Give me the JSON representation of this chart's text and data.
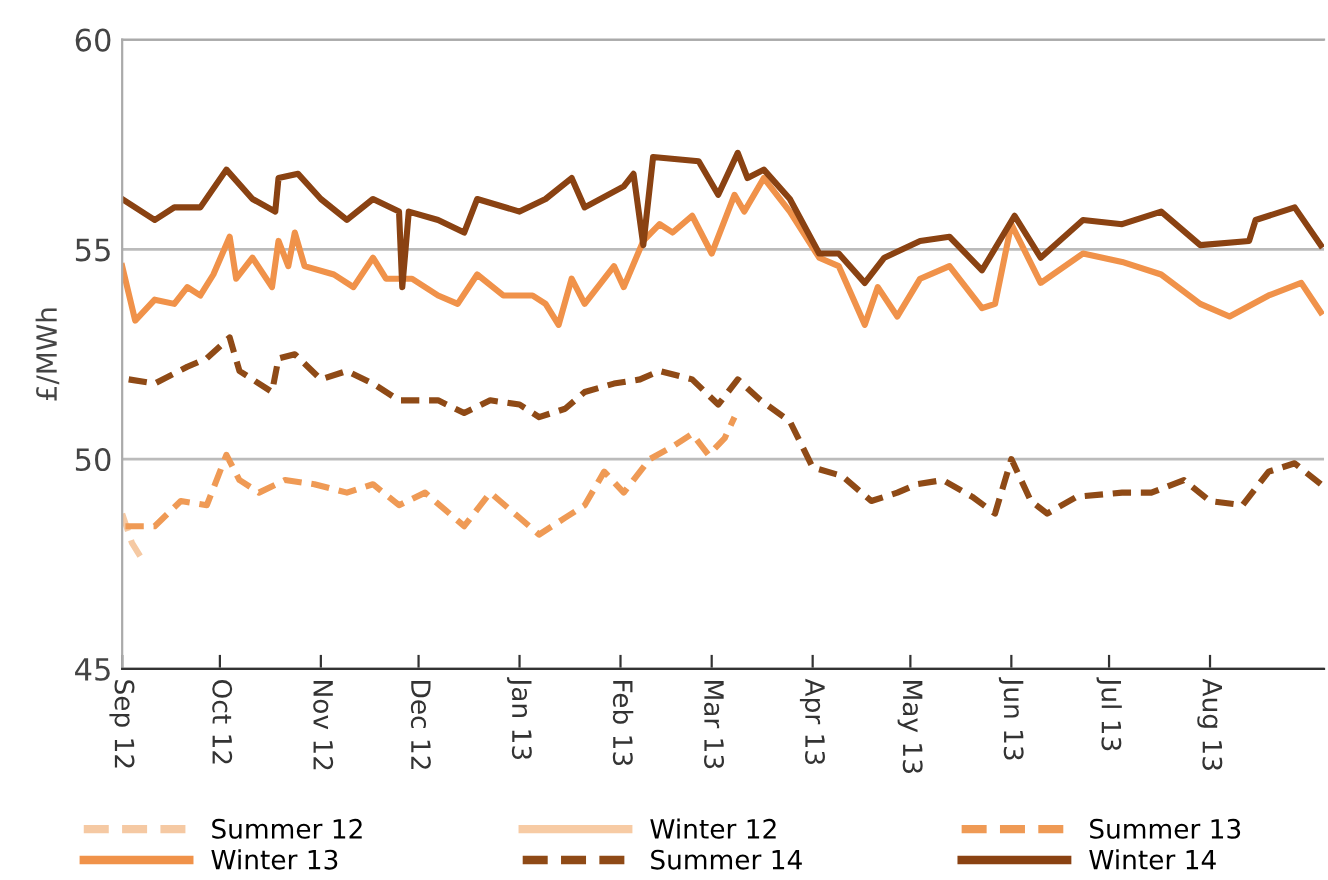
{
  "chart_data": {
    "type": "line",
    "ylabel": "£/MWh",
    "xlim": [
      "2012-09-01",
      "2013-09-05"
    ],
    "ylim": [
      45,
      60
    ],
    "yticks": [
      45,
      50,
      55,
      60
    ],
    "xticks": [
      {
        "value": "2012-09-01",
        "label": "Sep 12"
      },
      {
        "value": "2012-10-01",
        "label": "Oct 12"
      },
      {
        "value": "2012-11-01",
        "label": "Nov 12"
      },
      {
        "value": "2012-12-01",
        "label": "Dec 12"
      },
      {
        "value": "2013-01-01",
        "label": "Jan 13"
      },
      {
        "value": "2013-02-01",
        "label": "Feb 13"
      },
      {
        "value": "2013-03-01",
        "label": "Mar 13"
      },
      {
        "value": "2013-04-01",
        "label": "Apr 13"
      },
      {
        "value": "2013-05-01",
        "label": "May 13"
      },
      {
        "value": "2013-06-01",
        "label": "Jun 13"
      },
      {
        "value": "2013-07-01",
        "label": "Jul 13"
      },
      {
        "value": "2013-08-01",
        "label": "Aug 13"
      }
    ],
    "grid": "y",
    "legend": "bottom",
    "marker": "none",
    "series": [
      {
        "name": "Summer 12",
        "color": "#f5c9a3",
        "line_style": "dashed",
        "x": [
          "2012-09-01",
          "2012-09-04",
          "2012-09-08"
        ],
        "values": [
          48.7,
          48.0,
          47.5
        ]
      },
      {
        "name": "Winter 12",
        "color": "#f7cba4",
        "line_style": "solid"
      },
      {
        "name": "Summer 13",
        "color": "#ef9a55",
        "line_style": "dashed",
        "x": [
          "2012-09-02",
          "2012-09-11",
          "2012-09-19",
          "2012-09-27",
          "2012-10-03",
          "2012-10-07",
          "2012-10-13",
          "2012-10-21",
          "2012-10-30",
          "2012-11-09",
          "2012-11-17",
          "2012-11-25",
          "2012-12-03",
          "2012-12-15",
          "2012-12-23",
          "2013-01-01",
          "2013-01-07",
          "2013-01-15",
          "2013-01-21",
          "2013-01-27",
          "2013-02-02",
          "2013-02-10",
          "2013-02-17",
          "2013-02-23",
          "2013-02-28",
          "2013-03-05",
          "2013-03-08"
        ],
        "values": [
          48.4,
          48.4,
          49.0,
          48.9,
          50.1,
          49.5,
          49.2,
          49.5,
          49.4,
          49.2,
          49.4,
          48.9,
          49.2,
          48.4,
          49.2,
          48.6,
          48.2,
          48.6,
          48.9,
          49.7,
          49.2,
          50.0,
          50.3,
          50.6,
          50.1,
          50.5,
          51.0
        ]
      },
      {
        "name": "Winter 13",
        "color": "#f0924a",
        "line_style": "solid",
        "x": [
          "2012-09-01",
          "2012-09-05",
          "2012-09-11",
          "2012-09-17",
          "2012-09-21",
          "2012-09-25",
          "2012-09-29",
          "2012-10-04",
          "2012-10-06",
          "2012-10-11",
          "2012-10-17",
          "2012-10-19",
          "2012-10-22",
          "2012-10-24",
          "2012-10-27",
          "2012-11-05",
          "2012-11-11",
          "2012-11-17",
          "2012-11-21",
          "2012-11-29",
          "2012-12-07",
          "2012-12-13",
          "2012-12-19",
          "2012-12-27",
          "2013-01-05",
          "2013-01-09",
          "2013-01-13",
          "2013-01-17",
          "2013-01-21",
          "2013-01-30",
          "2013-02-02",
          "2013-02-08",
          "2013-02-13",
          "2013-02-17",
          "2013-02-23",
          "2013-03-01",
          "2013-03-08",
          "2013-03-11",
          "2013-03-17",
          "2013-03-25",
          "2013-04-03",
          "2013-04-09",
          "2013-04-17",
          "2013-04-21",
          "2013-04-27",
          "2013-05-04",
          "2013-05-13",
          "2013-05-23",
          "2013-05-27",
          "2013-06-01",
          "2013-06-10",
          "2013-06-23",
          "2013-07-05",
          "2013-07-17",
          "2013-07-29",
          "2013-08-07",
          "2013-08-19",
          "2013-08-29",
          "2013-09-04"
        ],
        "values": [
          54.6,
          53.3,
          53.8,
          53.7,
          54.1,
          53.9,
          54.4,
          55.3,
          54.3,
          54.8,
          54.1,
          55.2,
          54.6,
          55.4,
          54.6,
          54.4,
          54.1,
          54.8,
          54.3,
          54.3,
          53.9,
          53.7,
          54.4,
          53.9,
          53.9,
          53.7,
          53.2,
          54.3,
          53.7,
          54.6,
          54.1,
          55.2,
          55.6,
          55.4,
          55.8,
          54.9,
          56.3,
          55.9,
          56.7,
          55.9,
          54.8,
          54.6,
          53.2,
          54.1,
          53.4,
          54.3,
          54.6,
          53.6,
          53.7,
          55.6,
          54.2,
          54.9,
          54.7,
          54.4,
          53.7,
          53.4,
          53.9,
          54.2,
          53.5
        ]
      },
      {
        "name": "Summer 14",
        "color": "#8f4a16",
        "line_style": "dashed",
        "x": [
          "2012-09-03",
          "2012-09-11",
          "2012-09-21",
          "2012-09-27",
          "2012-10-04",
          "2012-10-07",
          "2012-10-17",
          "2012-10-19",
          "2012-10-24",
          "2012-11-01",
          "2012-11-09",
          "2012-11-17",
          "2012-11-25",
          "2012-12-07",
          "2012-12-15",
          "2012-12-23",
          "2013-01-01",
          "2013-01-07",
          "2013-01-15",
          "2013-01-21",
          "2013-01-30",
          "2013-02-07",
          "2013-02-13",
          "2013-02-23",
          "2013-03-03",
          "2013-03-09",
          "2013-03-16",
          "2013-03-25",
          "2013-04-01",
          "2013-04-10",
          "2013-04-19",
          "2013-04-27",
          "2013-05-03",
          "2013-05-11",
          "2013-05-20",
          "2013-05-27",
          "2013-06-01",
          "2013-06-07",
          "2013-06-12",
          "2013-06-21",
          "2013-07-05",
          "2013-07-14",
          "2013-07-24",
          "2013-08-01",
          "2013-08-11",
          "2013-08-19",
          "2013-08-27",
          "2013-09-04"
        ],
        "values": [
          51.9,
          51.8,
          52.2,
          52.4,
          52.9,
          52.1,
          51.6,
          52.4,
          52.5,
          51.9,
          52.1,
          51.8,
          51.4,
          51.4,
          51.1,
          51.4,
          51.3,
          51.0,
          51.2,
          51.6,
          51.8,
          51.9,
          52.1,
          51.9,
          51.3,
          51.9,
          51.4,
          50.9,
          49.8,
          49.6,
          49.0,
          49.2,
          49.4,
          49.5,
          49.1,
          48.7,
          50.0,
          49.0,
          48.7,
          49.1,
          49.2,
          49.2,
          49.5,
          49.0,
          48.9,
          49.7,
          49.9,
          49.4
        ]
      },
      {
        "name": "Winter 14",
        "color": "#8a4212",
        "line_style": "solid",
        "x": [
          "2012-09-01",
          "2012-09-11",
          "2012-09-17",
          "2012-09-25",
          "2012-10-03",
          "2012-10-11",
          "2012-10-18",
          "2012-10-19",
          "2012-10-25",
          "2012-11-01",
          "2012-11-09",
          "2012-11-17",
          "2012-11-25",
          "2012-11-26",
          "2012-11-28",
          "2012-12-07",
          "2012-12-15",
          "2012-12-19",
          "2013-01-01",
          "2013-01-09",
          "2013-01-17",
          "2013-01-21",
          "2013-02-02",
          "2013-02-05",
          "2013-02-08",
          "2013-02-11",
          "2013-02-25",
          "2013-03-03",
          "2013-03-09",
          "2013-03-12",
          "2013-03-17",
          "2013-03-25",
          "2013-04-03",
          "2013-04-09",
          "2013-04-17",
          "2013-04-23",
          "2013-05-04",
          "2013-05-13",
          "2013-05-23",
          "2013-06-02",
          "2013-06-10",
          "2013-06-23",
          "2013-07-05",
          "2013-07-17",
          "2013-07-29",
          "2013-08-13",
          "2013-08-15",
          "2013-08-27",
          "2013-09-04"
        ],
        "values": [
          56.2,
          55.7,
          56.0,
          56.0,
          56.9,
          56.2,
          55.9,
          56.7,
          56.8,
          56.2,
          55.7,
          56.2,
          55.9,
          54.1,
          55.9,
          55.7,
          55.4,
          56.2,
          55.9,
          56.2,
          56.7,
          56.0,
          56.5,
          56.8,
          55.1,
          57.2,
          57.1,
          56.3,
          57.3,
          56.7,
          56.9,
          56.2,
          54.9,
          54.9,
          54.2,
          54.8,
          55.2,
          55.3,
          54.5,
          55.8,
          54.8,
          55.7,
          55.6,
          55.9,
          55.1,
          55.2,
          55.7,
          56.0,
          55.1
        ]
      }
    ]
  }
}
